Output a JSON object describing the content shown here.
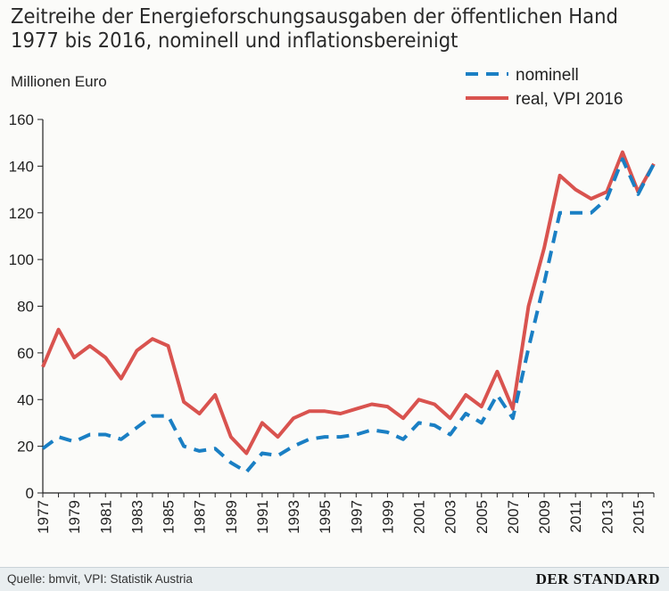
{
  "header": {
    "title_line1": "Zeitreihe der Energieforschungsausgaben der öffentlichen Hand",
    "title_line2": "1977 bis 2016, nominell und inflationsbereinigt"
  },
  "footer": {
    "source": "Quelle: bmvit, VPI: Statistik Austria",
    "brand": "DER STANDARD"
  },
  "colors": {
    "nominal": "#1a7fc4",
    "real": "#d9534f",
    "axis": "#222222",
    "footer_bg": "#e9eef0"
  },
  "chart_data": {
    "type": "line",
    "title": "Zeitreihe der Energieforschungsausgaben der öffentlichen Hand 1977 bis 2016, nominell und inflationsbereinigt",
    "ylabel": "Millionen Euro",
    "xlabel": "",
    "ylim": [
      0,
      160
    ],
    "yticks": [
      0,
      20,
      40,
      60,
      80,
      100,
      120,
      140,
      160
    ],
    "xlim": [
      1977,
      2016
    ],
    "xticks": [
      1977,
      1979,
      1981,
      1983,
      1985,
      1987,
      1989,
      1991,
      1993,
      1995,
      1997,
      1999,
      2001,
      2003,
      2005,
      2007,
      2009,
      2011,
      2013,
      2015
    ],
    "grid": false,
    "legend_position": "top-right",
    "x": [
      1977,
      1978,
      1979,
      1980,
      1981,
      1982,
      1983,
      1984,
      1985,
      1986,
      1987,
      1988,
      1989,
      1990,
      1991,
      1992,
      1993,
      1994,
      1995,
      1996,
      1997,
      1998,
      1999,
      2000,
      2001,
      2002,
      2003,
      2004,
      2005,
      2006,
      2007,
      2008,
      2009,
      2010,
      2011,
      2012,
      2013,
      2014,
      2015,
      2016
    ],
    "series": [
      {
        "name": "nominell",
        "style": "dashed",
        "color": "#1a7fc4",
        "values": [
          19,
          24,
          22,
          25,
          25,
          23,
          28,
          33,
          33,
          20,
          18,
          19,
          13,
          9,
          17,
          16,
          20,
          23,
          24,
          24,
          25,
          27,
          26,
          23,
          30,
          29,
          25,
          34,
          30,
          42,
          32,
          62,
          90,
          120,
          120,
          120,
          126,
          143,
          128,
          141
        ]
      },
      {
        "name": "real, VPI 2016",
        "style": "solid",
        "color": "#d9534f",
        "values": [
          54,
          70,
          58,
          63,
          58,
          49,
          61,
          66,
          63,
          39,
          34,
          42,
          24,
          17,
          30,
          24,
          32,
          35,
          35,
          34,
          36,
          38,
          37,
          32,
          40,
          38,
          32,
          42,
          37,
          52,
          36,
          80,
          105,
          136,
          130,
          126,
          129,
          146,
          129,
          141
        ]
      }
    ]
  }
}
